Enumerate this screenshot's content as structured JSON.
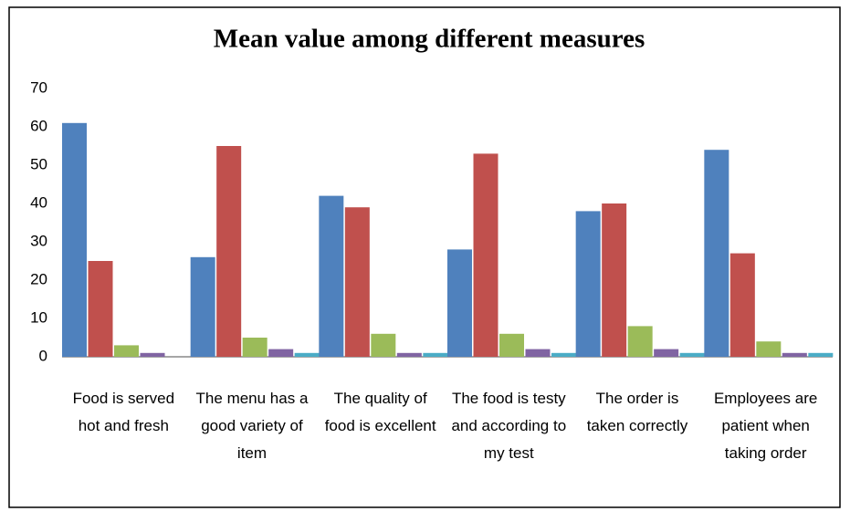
{
  "chart_data": {
    "type": "bar",
    "title": "Mean value among different measures",
    "categories": [
      "Food is served hot and fresh",
      "The menu has a good variety of item",
      "The quality of food is excellent",
      "The food is testy and according to my test",
      "The order is taken correctly",
      "Employees are patient when taking order"
    ],
    "series": [
      {
        "color": "#4f81bd",
        "values": [
          61,
          26,
          42,
          28,
          38,
          54
        ]
      },
      {
        "color": "#c0504d",
        "values": [
          25,
          55,
          39,
          53,
          40,
          27
        ]
      },
      {
        "color": "#9bbb59",
        "values": [
          3,
          5,
          6,
          6,
          8,
          4
        ]
      },
      {
        "color": "#8064a2",
        "values": [
          1,
          2,
          1,
          2,
          2,
          1
        ]
      },
      {
        "color": "#4bacc6",
        "values": [
          0,
          1,
          1,
          1,
          1,
          1
        ]
      }
    ],
    "ylim": [
      0,
      70
    ],
    "yticks": [
      0,
      10,
      20,
      30,
      40,
      50,
      60,
      70
    ],
    "grid": false
  }
}
